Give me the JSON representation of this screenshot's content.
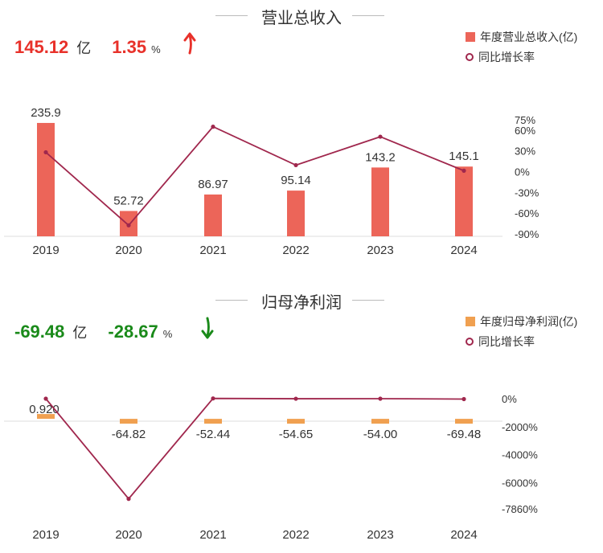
{
  "charts": [
    {
      "title": "营业总收入",
      "kpi": {
        "value": "145.12",
        "unit": "亿",
        "pct": "1.35",
        "pct_sign": "%",
        "direction": "up"
      },
      "legend": {
        "bar_label": "年度营业总收入(亿)",
        "line_label": "同比增长率"
      },
      "colors": {
        "bar": "#ec6559",
        "line": "#a0274d",
        "kpi": "#e8312a"
      }
    },
    {
      "title": "归母净利润",
      "kpi": {
        "value": "-69.48",
        "unit": "亿",
        "pct": "-28.67",
        "pct_sign": "%",
        "direction": "down"
      },
      "legend": {
        "bar_label": "年度归母净利润(亿)",
        "line_label": "同比增长率"
      },
      "colors": {
        "bar": "#f0a050",
        "line": "#a0274d",
        "kpi": "#1a8a1a"
      }
    }
  ],
  "chart_data": [
    {
      "type": "bar",
      "categories": [
        "2019",
        "2020",
        "2021",
        "2022",
        "2023",
        "2024"
      ],
      "series": [
        {
          "name": "年度营业总收入(亿)",
          "type": "bar",
          "values": [
            235.9,
            52.72,
            86.97,
            95.14,
            143.2,
            145.1
          ],
          "labels": [
            "235.9",
            "52.72",
            "86.97",
            "95.14",
            "143.2",
            "145.1"
          ]
        },
        {
          "name": "同比增长率",
          "type": "line",
          "axis": "right",
          "values": [
            28,
            -77.6,
            65,
            9.4,
            50.5,
            1.35
          ]
        }
      ],
      "left_ylim": [
        0,
        240
      ],
      "right_ylim": [
        -90,
        75
      ],
      "right_ticks": [
        "75%",
        "60%",
        "30%",
        "0%",
        "-30%",
        "-60%",
        "-90%"
      ],
      "right_tick_values": [
        75,
        60,
        30,
        0,
        -30,
        -60,
        -90
      ]
    },
    {
      "type": "bar",
      "categories": [
        "2019",
        "2020",
        "2021",
        "2022",
        "2023",
        "2024"
      ],
      "series": [
        {
          "name": "年度归母净利润(亿)",
          "type": "bar",
          "values": [
            0.92,
            -64.82,
            -52.44,
            -54.65,
            -54.0,
            -69.48
          ],
          "labels": [
            "0.920",
            "-64.82",
            "-52.44",
            "-54.65",
            "-54.00",
            "-69.48"
          ]
        },
        {
          "name": "同比增长率",
          "type": "line",
          "axis": "right",
          "values": [
            0,
            -7150,
            19,
            -4.2,
            1.2,
            -28.67
          ]
        }
      ],
      "left_ylim": [
        -3500,
        100
      ],
      "right_ylim": [
        -7860,
        0
      ],
      "right_ticks": [
        "0%",
        "-2000%",
        "-4000%",
        "-6000%",
        "-7860%"
      ],
      "right_tick_values": [
        0,
        -2000,
        -4000,
        -6000,
        -7860
      ]
    }
  ]
}
